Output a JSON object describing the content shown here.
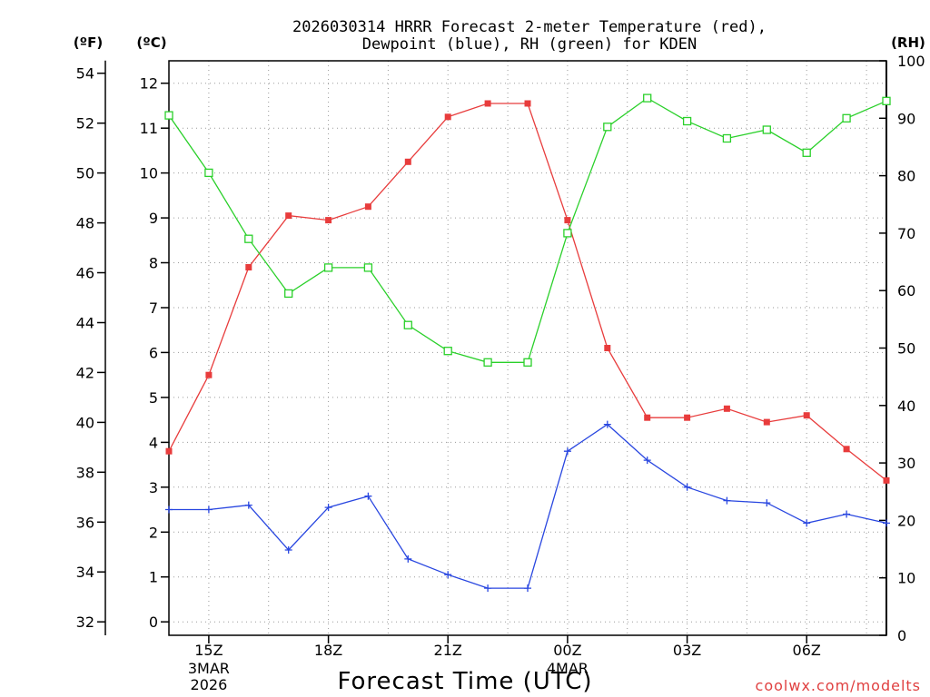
{
  "chart_data": {
    "type": "line",
    "title_line1": "2026030314 HRRR Forecast 2-meter Temperature (red),",
    "title_line2": "Dewpoint (blue), RH (green) for KDEN",
    "xlabel": "Forecast Time (UTC)",
    "credit": "coolwx.com/modelts",
    "left_unit_f": "(ºF)",
    "left_unit_c": "(ºC)",
    "right_unit": "(RH)",
    "x_hours": [
      14,
      15,
      16,
      17,
      18,
      19,
      20,
      21,
      22,
      23,
      24,
      25,
      26,
      27,
      28,
      29,
      30,
      31,
      32
    ],
    "x_ticks": [
      {
        "hour": 15,
        "label": "15Z",
        "sub1": "3MAR",
        "sub2": "2026"
      },
      {
        "hour": 18,
        "label": "18Z",
        "sub1": "",
        "sub2": ""
      },
      {
        "hour": 21,
        "label": "21Z",
        "sub1": "",
        "sub2": ""
      },
      {
        "hour": 24,
        "label": "00Z",
        "sub1": "4MAR",
        "sub2": ""
      },
      {
        "hour": 27,
        "label": "03Z",
        "sub1": "",
        "sub2": ""
      },
      {
        "hour": 30,
        "label": "06Z",
        "sub1": "",
        "sub2": ""
      }
    ],
    "ylim_c": [
      -0.3,
      12.5
    ],
    "y_ticks_c": [
      0,
      1,
      2,
      3,
      4,
      5,
      6,
      7,
      8,
      9,
      10,
      11,
      12
    ],
    "y_ticks_f": [
      32,
      34,
      36,
      38,
      40,
      42,
      44,
      46,
      48,
      50,
      52,
      54
    ],
    "ylim_rh": [
      0,
      100
    ],
    "y_ticks_rh": [
      0,
      10,
      20,
      30,
      40,
      50,
      60,
      70,
      80,
      90,
      100
    ],
    "series": [
      {
        "name": "Temperature",
        "color": "#e83c3c",
        "axis": "c",
        "marker": "filled-square",
        "values": [
          3.8,
          5.5,
          7.9,
          9.05,
          8.95,
          9.25,
          10.25,
          11.25,
          11.55,
          11.55,
          8.95,
          6.1,
          4.55,
          4.55,
          4.75,
          4.45,
          4.6,
          3.85,
          3.15
        ]
      },
      {
        "name": "Dewpoint",
        "color": "#2846e0",
        "axis": "c",
        "marker": "plus",
        "values": [
          2.5,
          2.5,
          2.6,
          1.6,
          2.55,
          2.8,
          1.4,
          1.05,
          0.75,
          0.75,
          3.8,
          4.4,
          3.6,
          3.0,
          2.7,
          2.65,
          2.2,
          2.4,
          2.2
        ]
      },
      {
        "name": "RH",
        "color": "#2ad02a",
        "axis": "rh",
        "marker": "open-square",
        "values": [
          90.5,
          80.5,
          69,
          59.5,
          64,
          64,
          54,
          49.5,
          47.5,
          47.5,
          70,
          88.5,
          93.5,
          89.5,
          86.5,
          88,
          84,
          90,
          93
        ]
      }
    ]
  }
}
